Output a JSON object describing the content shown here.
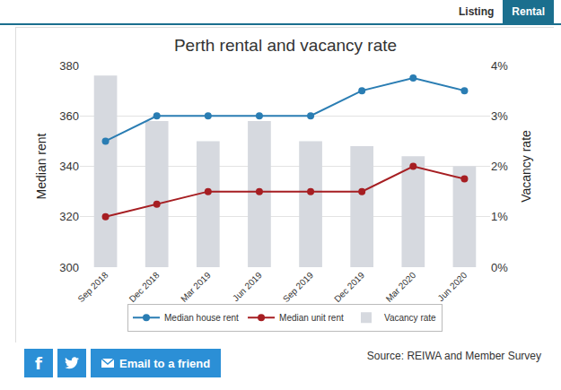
{
  "page": {
    "tabs": [
      "Listing",
      "Rental"
    ],
    "active_tab": "Rental",
    "share_buttons": [
      "f",
      "Email to a friend"
    ],
    "source": "Source: REIWA and Member Survey"
  },
  "chart_data": {
    "type": "bar",
    "title": "Perth rental and vacancy rate",
    "categories": [
      "Sep 2018",
      "Dec 2018",
      "Mar 2019",
      "Jun 2019",
      "Sep 2019",
      "Dec 2019",
      "Mar 2020",
      "Jun 2020"
    ],
    "series": [
      {
        "name": "Median house rent",
        "type": "line",
        "marker": "circle",
        "color": "#2a7db3",
        "values": [
          350,
          360,
          360,
          360,
          360,
          370,
          375,
          370
        ]
      },
      {
        "name": "Median unit rent",
        "type": "line",
        "marker": "circle",
        "color": "#a61e22",
        "values": [
          320,
          325,
          330,
          330,
          330,
          330,
          340,
          335
        ]
      },
      {
        "name": "Vacancy rate",
        "type": "bar",
        "axis": "y2",
        "color": "#d6d9df",
        "values": [
          3.8,
          2.9,
          2.5,
          2.9,
          2.5,
          2.4,
          2.2,
          2.0
        ]
      }
    ],
    "y_label": "Median rent",
    "y2_label": "Vacancy rate",
    "ylim": [
      300,
      380
    ],
    "yticks": [
      300,
      320,
      340,
      360,
      380
    ],
    "y2lim": [
      0,
      4
    ],
    "y2ticks": [
      {
        "value": 0,
        "label": "0%"
      },
      {
        "value": 1,
        "label": "1%"
      },
      {
        "value": 2,
        "label": "2%"
      },
      {
        "value": 3,
        "label": "3%"
      },
      {
        "value": 4,
        "label": "4%"
      }
    ],
    "grid": true,
    "legend": "bottom"
  }
}
